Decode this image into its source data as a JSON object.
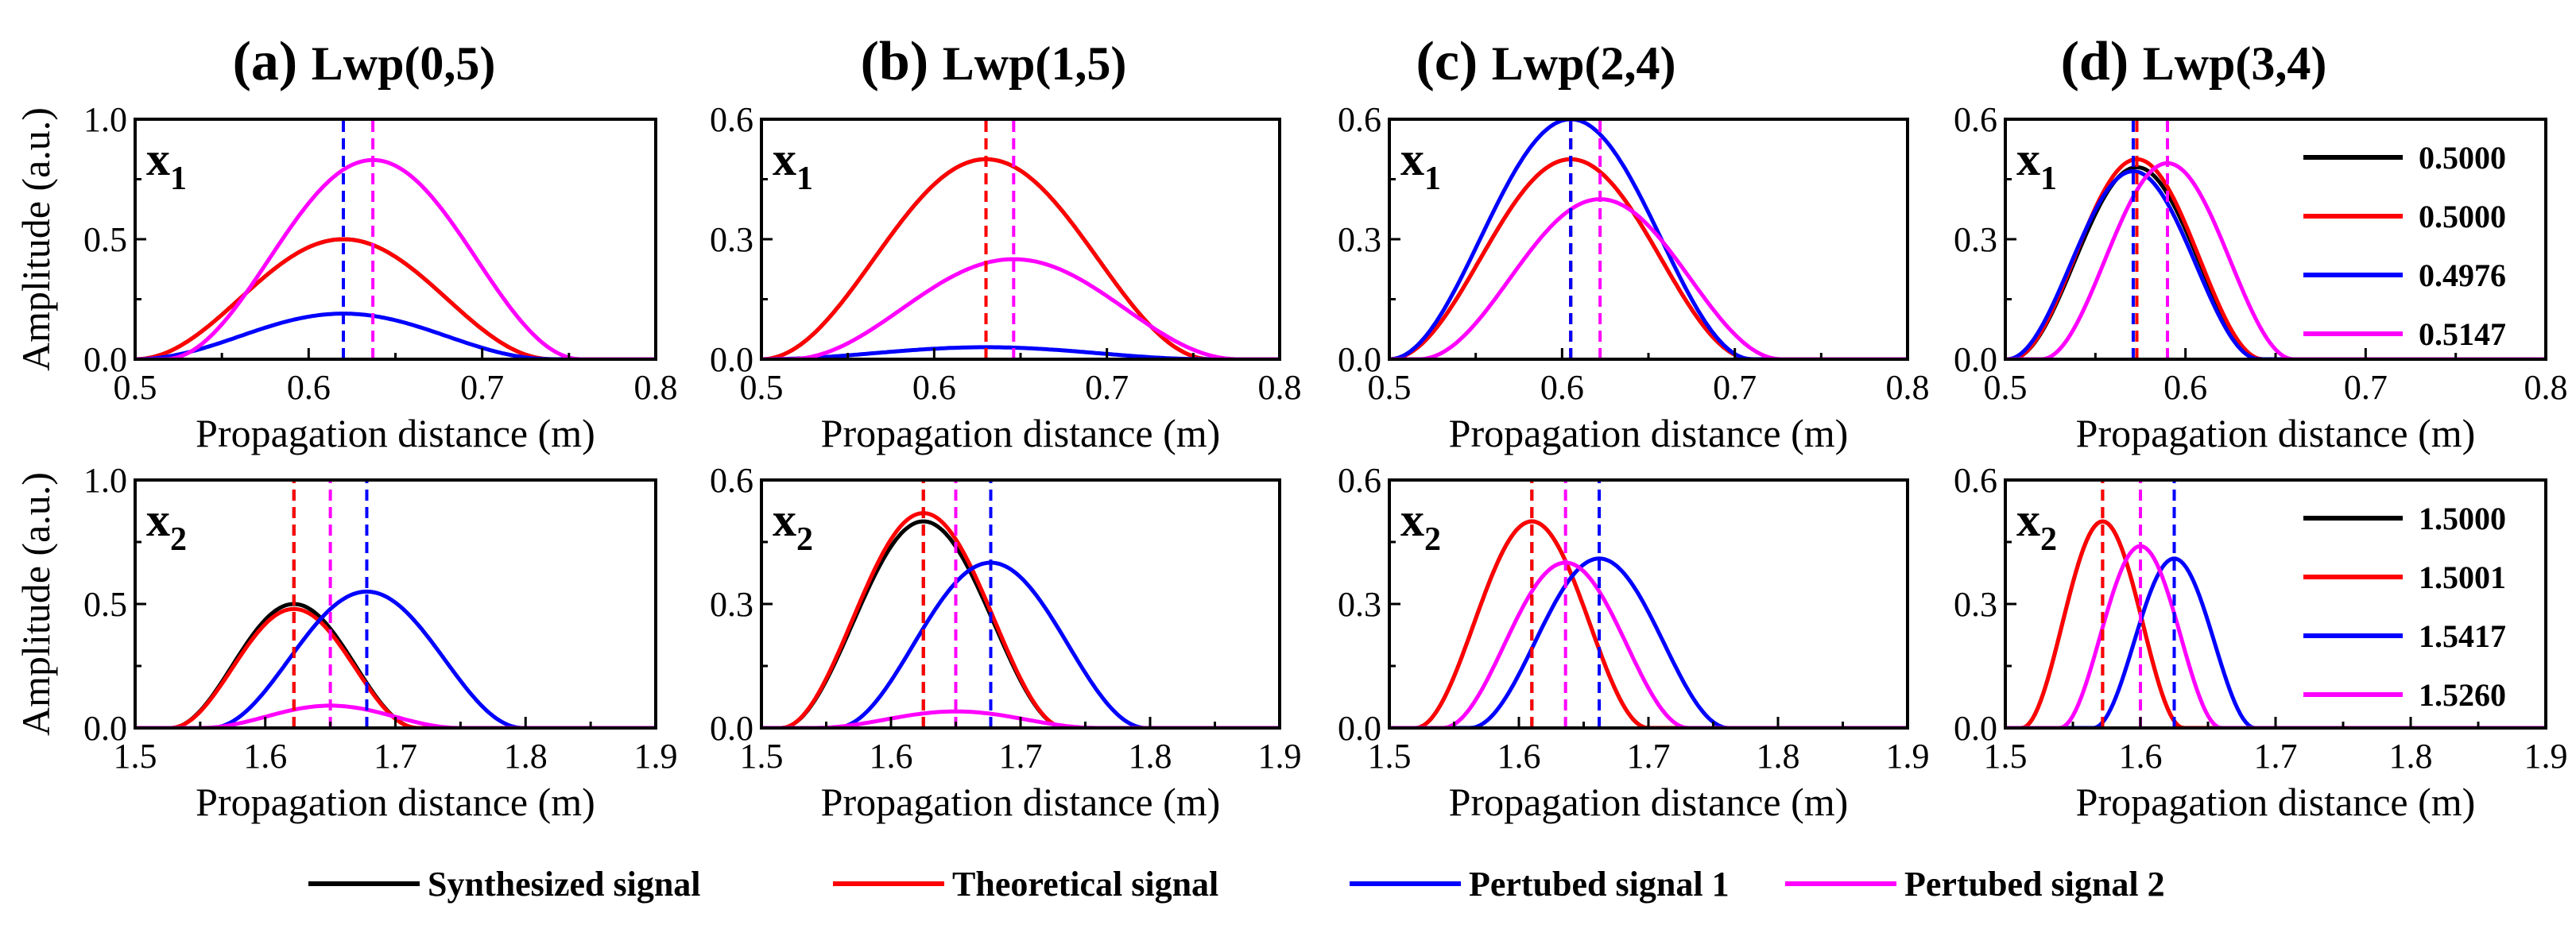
{
  "legend": [
    {
      "label": "Synthesized signal",
      "color": "#000000"
    },
    {
      "label": "Theoretical signal",
      "color": "#ff0000"
    },
    {
      "label": "Pertubed signal 1",
      "color": "#0000ff"
    },
    {
      "label": "Pertubed signal 2",
      "color": "#ff00ff"
    }
  ],
  "colors": {
    "synth": "#000000",
    "theory": "#ff0000",
    "pert1": "#0000ff",
    "pert2": "#ff00ff"
  },
  "chart_data": [
    {
      "type": "line",
      "panel": "(a)",
      "title": "Lwp(0,5)",
      "row": "x1",
      "var_letter": "x",
      "var_sub": "1",
      "xlabel": "Propagation distance (m)",
      "ylabel": "Amplitude (a.u.)",
      "xlim": [
        0.5,
        0.8
      ],
      "ylim": [
        0,
        1.0
      ],
      "xticks": [
        "0.5",
        "0.6",
        "0.7",
        "0.8"
      ],
      "yticks": [
        "0.0",
        "0.5",
        "1.0"
      ],
      "series": [
        {
          "name": "Synthesized signal",
          "color": "#000000",
          "center": 0.62,
          "half_width": 0.12,
          "amp": 0.5,
          "vline": true
        },
        {
          "name": "Theoretical signal",
          "color": "#ff0000",
          "center": 0.62,
          "half_width": 0.12,
          "amp": 0.5,
          "vline": true
        },
        {
          "name": "Pertubed signal 1",
          "color": "#0000ff",
          "center": 0.62,
          "half_width": 0.12,
          "amp": 0.19,
          "vline": true
        },
        {
          "name": "Pertubed signal 2",
          "color": "#ff00ff",
          "center": 0.637,
          "half_width": 0.12,
          "amp": 0.83,
          "vline": true
        }
      ]
    },
    {
      "type": "line",
      "panel": "(b)",
      "title": "Lwp(1,5)",
      "row": "x1",
      "var_letter": "x",
      "var_sub": "1",
      "xlabel": "Propagation distance (m)",
      "ylabel": "",
      "xlim": [
        0.5,
        0.8
      ],
      "ylim": [
        0,
        0.6
      ],
      "xticks": [
        "0.5",
        "0.6",
        "0.7",
        "0.8"
      ],
      "yticks": [
        "0.0",
        "0.3",
        "0.6"
      ],
      "series": [
        {
          "name": "Synthesized signal",
          "color": "#000000",
          "center": 0.63,
          "half_width": 0.13,
          "amp": 0.5,
          "vline": true
        },
        {
          "name": "Theoretical signal",
          "color": "#ff0000",
          "center": 0.63,
          "half_width": 0.13,
          "amp": 0.5,
          "vline": true
        },
        {
          "name": "Pertubed signal 1",
          "color": "#0000ff",
          "center": 0.63,
          "half_width": 0.13,
          "amp": 0.03,
          "vline": false
        },
        {
          "name": "Pertubed signal 2",
          "color": "#ff00ff",
          "center": 0.646,
          "half_width": 0.13,
          "amp": 0.25,
          "vline": true
        }
      ]
    },
    {
      "type": "line",
      "panel": "(c)",
      "title": "Lwp(2,4)",
      "row": "x1",
      "var_letter": "x",
      "var_sub": "1",
      "xlabel": "Propagation distance (m)",
      "ylabel": "",
      "xlim": [
        0.5,
        0.8
      ],
      "ylim": [
        0,
        0.6
      ],
      "xticks": [
        "0.5",
        "0.6",
        "0.7",
        "0.8"
      ],
      "yticks": [
        "0.0",
        "0.3",
        "0.6"
      ],
      "series": [
        {
          "name": "Synthesized signal",
          "color": "#000000",
          "center": 0.605,
          "half_width": 0.105,
          "amp": 0.5,
          "vline": true
        },
        {
          "name": "Theoretical signal",
          "color": "#ff0000",
          "center": 0.605,
          "half_width": 0.105,
          "amp": 0.5,
          "vline": true
        },
        {
          "name": "Pertubed signal 1",
          "color": "#0000ff",
          "center": 0.605,
          "half_width": 0.105,
          "amp": 0.6,
          "vline": true
        },
        {
          "name": "Pertubed signal 2",
          "color": "#ff00ff",
          "center": 0.622,
          "half_width": 0.105,
          "amp": 0.4,
          "vline": true
        }
      ]
    },
    {
      "type": "line",
      "panel": "(d)",
      "title": "Lwp(3,4)",
      "row": "x1",
      "var_letter": "x",
      "var_sub": "1",
      "xlabel": "Propagation distance (m)",
      "ylabel": "",
      "xlim": [
        0.5,
        0.8
      ],
      "ylim": [
        0,
        0.6
      ],
      "xticks": [
        "0.5",
        "0.6",
        "0.7",
        "0.8"
      ],
      "yticks": [
        "0.0",
        "0.3",
        "0.6"
      ],
      "legend_values": [
        "0.5000",
        "0.5000",
        "0.4976",
        "0.5147"
      ],
      "series": [
        {
          "name": "Synthesized signal",
          "color": "#000000",
          "center": 0.573,
          "half_width": 0.07,
          "amp": 0.48,
          "vline": true
        },
        {
          "name": "Theoretical signal",
          "color": "#ff0000",
          "center": 0.573,
          "half_width": 0.07,
          "amp": 0.5,
          "vline": true
        },
        {
          "name": "Pertubed signal 1",
          "color": "#0000ff",
          "center": 0.571,
          "half_width": 0.07,
          "amp": 0.47,
          "vline": true
        },
        {
          "name": "Pertubed signal 2",
          "color": "#ff00ff",
          "center": 0.59,
          "half_width": 0.07,
          "amp": 0.49,
          "vline": true
        }
      ]
    },
    {
      "type": "line",
      "panel": "(a)",
      "title": "Lwp(0,5)",
      "row": "x2",
      "var_letter": "x",
      "var_sub": "2",
      "xlabel": "Propagation distance (m)",
      "ylabel": "Amplitude (a.u.)",
      "xlim": [
        1.5,
        1.9
      ],
      "ylim": [
        0,
        1.0
      ],
      "xticks": [
        "1.5",
        "1.6",
        "1.7",
        "1.8",
        "1.9"
      ],
      "yticks": [
        "0.0",
        "0.5",
        "1.0"
      ],
      "series": [
        {
          "name": "Synthesized signal",
          "color": "#000000",
          "center": 1.622,
          "half_width": 0.095,
          "amp": 0.5,
          "vline": true
        },
        {
          "name": "Theoretical signal",
          "color": "#ff0000",
          "center": 1.622,
          "half_width": 0.095,
          "amp": 0.48,
          "vline": true
        },
        {
          "name": "Pertubed signal 1",
          "color": "#0000ff",
          "center": 1.678,
          "half_width": 0.12,
          "amp": 0.55,
          "vline": true
        },
        {
          "name": "Pertubed signal 2",
          "color": "#ff00ff",
          "center": 1.65,
          "half_width": 0.1,
          "amp": 0.09,
          "vline": true
        }
      ]
    },
    {
      "type": "line",
      "panel": "(b)",
      "title": "Lwp(1,5)",
      "row": "x2",
      "var_letter": "x",
      "var_sub": "2",
      "xlabel": "Propagation distance (m)",
      "ylabel": "",
      "xlim": [
        1.5,
        1.9
      ],
      "ylim": [
        0,
        0.6
      ],
      "xticks": [
        "1.5",
        "1.6",
        "1.7",
        "1.8",
        "1.9"
      ],
      "yticks": [
        "0.0",
        "0.3",
        "0.6"
      ],
      "series": [
        {
          "name": "Synthesized signal",
          "color": "#000000",
          "center": 1.625,
          "half_width": 0.11,
          "amp": 0.5,
          "vline": true
        },
        {
          "name": "Theoretical signal",
          "color": "#ff0000",
          "center": 1.625,
          "half_width": 0.11,
          "amp": 0.52,
          "vline": true
        },
        {
          "name": "Pertubed signal 1",
          "color": "#0000ff",
          "center": 1.677,
          "half_width": 0.12,
          "amp": 0.4,
          "vline": true
        },
        {
          "name": "Pertubed signal 2",
          "color": "#ff00ff",
          "center": 1.65,
          "half_width": 0.11,
          "amp": 0.04,
          "vline": true
        }
      ]
    },
    {
      "type": "line",
      "panel": "(c)",
      "title": "Lwp(2,4)",
      "row": "x2",
      "var_letter": "x",
      "var_sub": "2",
      "xlabel": "Propagation distance (m)",
      "ylabel": "",
      "xlim": [
        1.5,
        1.9
      ],
      "ylim": [
        0,
        0.6
      ],
      "xticks": [
        "1.5",
        "1.6",
        "1.7",
        "1.8",
        "1.9"
      ],
      "yticks": [
        "0.0",
        "0.3",
        "0.6"
      ],
      "series": [
        {
          "name": "Synthesized signal",
          "color": "#000000",
          "center": 1.61,
          "half_width": 0.09,
          "amp": 0.5,
          "vline": true
        },
        {
          "name": "Theoretical signal",
          "color": "#ff0000",
          "center": 1.61,
          "half_width": 0.09,
          "amp": 0.5,
          "vline": true
        },
        {
          "name": "Pertubed signal 1",
          "color": "#0000ff",
          "center": 1.662,
          "half_width": 0.1,
          "amp": 0.41,
          "vline": true
        },
        {
          "name": "Pertubed signal 2",
          "color": "#ff00ff",
          "center": 1.636,
          "half_width": 0.095,
          "amp": 0.4,
          "vline": true
        }
      ]
    },
    {
      "type": "line",
      "panel": "(d)",
      "title": "Lwp(3,4)",
      "row": "x2",
      "var_letter": "x",
      "var_sub": "2",
      "xlabel": "Propagation distance (m)",
      "ylabel": "",
      "xlim": [
        1.5,
        1.9
      ],
      "ylim": [
        0,
        0.6
      ],
      "xticks": [
        "1.5",
        "1.6",
        "1.7",
        "1.8",
        "1.9"
      ],
      "yticks": [
        "0.0",
        "0.3",
        "0.6"
      ],
      "legend_values": [
        "1.5000",
        "1.5001",
        "1.5417",
        "1.5260"
      ],
      "series": [
        {
          "name": "Synthesized signal",
          "color": "#000000",
          "center": 1.572,
          "half_width": 0.06,
          "amp": 0.5,
          "vline": true
        },
        {
          "name": "Theoretical signal",
          "color": "#ff0000",
          "center": 1.572,
          "half_width": 0.06,
          "amp": 0.5,
          "vline": true
        },
        {
          "name": "Pertubed signal 1",
          "color": "#0000ff",
          "center": 1.625,
          "half_width": 0.06,
          "amp": 0.41,
          "vline": true
        },
        {
          "name": "Pertubed signal 2",
          "color": "#ff00ff",
          "center": 1.6,
          "half_width": 0.06,
          "amp": 0.44,
          "vline": true
        }
      ]
    }
  ]
}
